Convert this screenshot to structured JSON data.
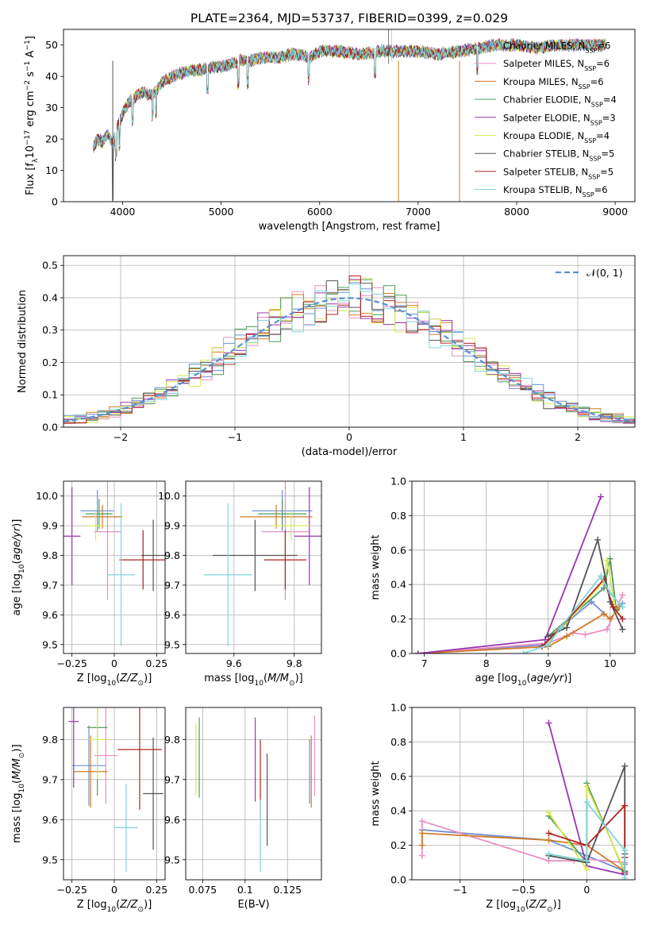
{
  "colors": {
    "Chabrier MILES": "#6e8fd8",
    "Salpeter MILES": "#e98fc3",
    "Kroupa MILES": "#d47a26",
    "Chabrier ELODIE": "#4f9c5a",
    "Salpeter ELODIE": "#9b34b0",
    "Kroupa ELODIE": "#d9ea54",
    "Chabrier STELIB": "#555555",
    "Salpeter STELIB": "#b22222",
    "Kroupa STELIB": "#7fd6d8",
    "normal": "#5b8fd4"
  },
  "chart_data": [
    {
      "type": "line",
      "title": "PLATE=2364, MJD=53737, FIBERID=0399, z=0.029",
      "xlabel": "wavelength [Angstrom, rest frame]",
      "ylabel": "Flux [f_λ10^-17 erg cm^-2 s^-1 A^-1]",
      "xlim": [
        3400,
        9200
      ],
      "ylim": [
        0,
        55
      ],
      "xticks": [
        4000,
        5000,
        6000,
        7000,
        8000,
        9000
      ],
      "yticks": [
        0,
        10,
        20,
        30,
        40,
        50
      ],
      "legend_position": "right",
      "legend": [
        {
          "name": "Chabrier MILES",
          "nssp": "6"
        },
        {
          "name": "Salpeter MILES",
          "nssp": "6"
        },
        {
          "name": "Kroupa MILES",
          "nssp": "6"
        },
        {
          "name": "Chabrier ELODIE",
          "nssp": "4"
        },
        {
          "name": "Salpeter ELODIE",
          "nssp": "3"
        },
        {
          "name": "Kroupa ELODIE",
          "nssp": "4"
        },
        {
          "name": "Chabrier STELIB",
          "nssp": "5"
        },
        {
          "name": "Salpeter STELIB",
          "nssp": "5"
        },
        {
          "name": "Kroupa STELIB",
          "nssp": "6"
        }
      ],
      "spectrum": {
        "x": [
          3700,
          3750,
          3800,
          3850,
          3900,
          3950,
          4000,
          4050,
          4100,
          4150,
          4200,
          4300,
          4400,
          4500,
          4600,
          4700,
          4800,
          4900,
          5000,
          5100,
          5200,
          5300,
          5400,
          5500,
          5600,
          5700,
          5800,
          5900,
          6000,
          6200,
          6400,
          6600,
          6800,
          7000,
          7200,
          7400,
          7600,
          7800,
          8000,
          8200,
          8400,
          8600,
          8800,
          8900
        ],
        "y": [
          17,
          20,
          19,
          22,
          18,
          24,
          28,
          31,
          33,
          34,
          35,
          34,
          38,
          40,
          41,
          42,
          42,
          43,
          43,
          44,
          45,
          45,
          46,
          46,
          46,
          47,
          47,
          46,
          48,
          48,
          47,
          48,
          48,
          48,
          47,
          48,
          49,
          50,
          50,
          49,
          50,
          50,
          50,
          50
        ]
      },
      "dropouts": [
        {
          "x": 3900,
          "y": 0,
          "series": "Chabrier STELIB"
        },
        {
          "x": 6800,
          "y": 0,
          "series": "Kroupa MILES"
        },
        {
          "x": 7420,
          "y": 0,
          "series": "Kroupa MILES"
        }
      ]
    },
    {
      "type": "histogram",
      "xlabel": "(data-model)/error",
      "ylabel": "Normed distribution",
      "xlim": [
        -2.5,
        2.5
      ],
      "ylim": [
        0,
        0.53
      ],
      "xticks": [
        -2,
        -1,
        0,
        1,
        2
      ],
      "yticks": [
        0.0,
        0.1,
        0.2,
        0.3,
        0.4,
        0.5
      ],
      "grid": true,
      "legend_position": "top-right",
      "bin_width": 0.1,
      "normal_curve": {
        "label": "N(0,1)",
        "mu": 0,
        "sigma": 1
      }
    },
    {
      "type": "scatter",
      "xlabel": "Z [log10(Z/Z⊙)]",
      "ylabel": "age [log10(age/yr)]",
      "xlim": [
        -0.3,
        0.3
      ],
      "ylim": [
        9.47,
        10.05
      ],
      "xticks": [
        -0.25,
        0.0,
        0.25
      ],
      "yticks": [
        9.5,
        9.6,
        9.7,
        9.8,
        9.9,
        10.0
      ],
      "grid": true,
      "points": [
        {
          "series": "Chabrier MILES",
          "x": -0.1,
          "y": 9.95,
          "xerr": 0.1,
          "yerr": 0.07
        },
        {
          "series": "Salpeter MILES",
          "x": -0.04,
          "y": 9.88,
          "xerr": 0.08,
          "yerr": 0.23
        },
        {
          "series": "Kroupa MILES",
          "x": -0.07,
          "y": 9.93,
          "xerr": 0.12,
          "yerr": 0.04
        },
        {
          "series": "Chabrier ELODIE",
          "x": -0.09,
          "y": 9.94,
          "xerr": 0.08,
          "yerr": 0.05
        },
        {
          "series": "Salpeter ELODIE",
          "x": -0.25,
          "y": 9.865,
          "xerr": 0.05,
          "yerr": 0.165
        },
        {
          "series": "Kroupa ELODIE",
          "x": -0.11,
          "y": 9.9,
          "xerr": 0.06,
          "yerr": 0.05
        },
        {
          "series": "Chabrier STELIB",
          "x": 0.23,
          "y": 9.8,
          "xerr": 0.07,
          "yerr": 0.12
        },
        {
          "series": "Salpeter STELIB",
          "x": 0.17,
          "y": 9.785,
          "xerr": 0.14,
          "yerr": 0.1
        },
        {
          "series": "Kroupa STELIB",
          "x": 0.04,
          "y": 9.735,
          "xerr": 0.08,
          "yerr": 0.24
        }
      ]
    },
    {
      "type": "scatter",
      "xlabel": "mass [log10(M/M⊙)]",
      "ylabel": "",
      "xlim": [
        9.44,
        9.89
      ],
      "ylim": [
        9.47,
        10.05
      ],
      "xticks": [
        9.6,
        9.8
      ],
      "yticks": [
        9.5,
        9.6,
        9.7,
        9.8,
        9.9,
        10.0
      ],
      "grid": true,
      "points": [
        {
          "series": "Chabrier MILES",
          "x": 9.76,
          "y": 9.95,
          "xerr": 0.1,
          "yerr": 0.07
        },
        {
          "series": "Salpeter MILES",
          "x": 9.77,
          "y": 9.88,
          "xerr": 0.08,
          "yerr": 0.23
        },
        {
          "series": "Kroupa MILES",
          "x": 9.74,
          "y": 9.93,
          "xerr": 0.12,
          "yerr": 0.04
        },
        {
          "series": "Chabrier ELODIE",
          "x": 9.76,
          "y": 9.94,
          "xerr": 0.08,
          "yerr": 0.05
        },
        {
          "series": "Salpeter ELODIE",
          "x": 9.85,
          "y": 9.865,
          "xerr": 0.05,
          "yerr": 0.165
        },
        {
          "series": "Kroupa ELODIE",
          "x": 9.79,
          "y": 9.9,
          "xerr": 0.06,
          "yerr": 0.05
        },
        {
          "series": "Chabrier STELIB",
          "x": 9.67,
          "y": 9.8,
          "xerr": 0.14,
          "yerr": 0.12
        },
        {
          "series": "Salpeter STELIB",
          "x": 9.77,
          "y": 9.785,
          "xerr": 0.07,
          "yerr": 0.1
        },
        {
          "series": "Kroupa STELIB",
          "x": 9.58,
          "y": 9.735,
          "xerr": 0.08,
          "yerr": 0.24
        }
      ]
    },
    {
      "type": "line",
      "xlabel": "age [log10(age/yr)]",
      "ylabel": "mass weight",
      "xlim": [
        6.8,
        10.4
      ],
      "ylim": [
        0,
        1
      ],
      "xticks": [
        7,
        8,
        9,
        10
      ],
      "yticks": [
        0.0,
        0.2,
        0.4,
        0.6,
        0.8,
        1.0
      ],
      "grid": true,
      "series": [
        {
          "name": "Chabrier MILES",
          "x": [
            6.9,
            8.95,
            9.3,
            9.7,
            10.0,
            10.2
          ],
          "y": [
            0.0,
            0.05,
            0.18,
            0.3,
            0.2,
            0.29
          ]
        },
        {
          "name": "Salpeter MILES",
          "x": [
            6.9,
            9.0,
            9.4,
            9.6,
            9.95,
            10.2
          ],
          "y": [
            0.0,
            0.06,
            0.12,
            0.11,
            0.14,
            0.34
          ]
        },
        {
          "name": "Kroupa MILES",
          "x": [
            6.9,
            9.0,
            9.3,
            9.9,
            10.0,
            10.15
          ],
          "y": [
            0.0,
            0.04,
            0.1,
            0.23,
            0.2,
            0.27
          ]
        },
        {
          "name": "Chabrier ELODIE",
          "x": [
            9.0,
            9.9,
            10.0,
            10.1
          ],
          "y": [
            0.1,
            0.38,
            0.55,
            0.25
          ]
        },
        {
          "name": "Salpeter ELODIE",
          "x": [
            6.9,
            8.95,
            9.85
          ],
          "y": [
            0.0,
            0.08,
            0.91
          ]
        },
        {
          "name": "Kroupa ELODIE",
          "x": [
            9.0,
            9.9,
            9.95,
            10.1
          ],
          "y": [
            0.06,
            0.42,
            0.54,
            0.23
          ]
        },
        {
          "name": "Chabrier STELIB",
          "x": [
            9.0,
            9.3,
            9.8,
            10.0,
            10.2
          ],
          "y": [
            0.1,
            0.15,
            0.66,
            0.3,
            0.14
          ]
        },
        {
          "name": "Salpeter STELIB",
          "x": [
            8.9,
            9.2,
            9.9,
            10.05,
            10.2
          ],
          "y": [
            0.04,
            0.15,
            0.43,
            0.27,
            0.2
          ]
        },
        {
          "name": "Kroupa STELIB",
          "x": [
            8.6,
            9.0,
            9.2,
            9.85,
            10.0,
            10.2
          ],
          "y": [
            0.0,
            0.05,
            0.15,
            0.45,
            0.35,
            0.27
          ]
        }
      ]
    },
    {
      "type": "scatter",
      "xlabel": "Z [log10(Z/Z⊙)]",
      "ylabel": "mass [log10(M/M⊙)]",
      "xlim": [
        -0.3,
        0.3
      ],
      "ylim": [
        9.45,
        9.88
      ],
      "xticks": [
        -0.25,
        0.0,
        0.25
      ],
      "yticks": [
        9.5,
        9.6,
        9.7,
        9.8
      ],
      "grid": true,
      "points": [
        {
          "series": "Chabrier MILES",
          "x": -0.15,
          "y": 9.735,
          "xerr": 0.1,
          "yerr": 0.1
        },
        {
          "series": "Salpeter MILES",
          "x": -0.05,
          "y": 9.76,
          "xerr": 0.07,
          "yerr": 0.12
        },
        {
          "series": "Kroupa MILES",
          "x": -0.14,
          "y": 9.72,
          "xerr": 0.1,
          "yerr": 0.09
        },
        {
          "series": "Chabrier ELODIE",
          "x": -0.1,
          "y": 9.83,
          "xerr": 0.06,
          "yerr": 0.17
        },
        {
          "series": "Salpeter ELODIE",
          "x": -0.24,
          "y": 9.845,
          "xerr": 0.03,
          "yerr": 0.165
        },
        {
          "series": "Kroupa ELODIE",
          "x": -0.1,
          "y": 9.8,
          "xerr": 0.05,
          "yerr": 0.1
        },
        {
          "series": "Chabrier STELIB",
          "x": 0.23,
          "y": 9.665,
          "xerr": 0.06,
          "yerr": 0.14
        },
        {
          "series": "Salpeter STELIB",
          "x": 0.15,
          "y": 9.775,
          "xerr": 0.13,
          "yerr": 0.15
        },
        {
          "series": "Kroupa STELIB",
          "x": 0.07,
          "y": 9.58,
          "xerr": 0.07,
          "yerr": 0.11
        }
      ]
    },
    {
      "type": "scatter",
      "xlabel": "E(B-V)",
      "ylabel": "",
      "xlim": [
        0.065,
        0.145
      ],
      "ylim": [
        9.45,
        9.88
      ],
      "xticks": [
        0.075,
        0.1,
        0.125
      ],
      "yticks": [
        9.5,
        9.6,
        9.7,
        9.8
      ],
      "grid": true,
      "points": [
        {
          "series": "Chabrier MILES",
          "x": 0.138,
          "y": 9.72,
          "yerr": 0.08
        },
        {
          "series": "Salpeter MILES",
          "x": 0.141,
          "y": 9.76,
          "yerr": 0.1
        },
        {
          "series": "Kroupa MILES",
          "x": 0.139,
          "y": 9.72,
          "yerr": 0.09
        },
        {
          "series": "Chabrier ELODIE",
          "x": 0.073,
          "y": 9.755,
          "yerr": 0.1
        },
        {
          "series": "Salpeter ELODIE",
          "x": 0.106,
          "y": 9.75,
          "yerr": 0.105
        },
        {
          "series": "Kroupa ELODIE",
          "x": 0.071,
          "y": 9.75,
          "yerr": 0.09
        },
        {
          "series": "Chabrier STELIB",
          "x": 0.113,
          "y": 9.65,
          "yerr": 0.115
        },
        {
          "series": "Salpeter STELIB",
          "x": 0.109,
          "y": 9.7,
          "yerr": 0.1
        },
        {
          "series": "Kroupa STELIB",
          "x": 0.109,
          "y": 9.56,
          "yerr": 0.09
        }
      ]
    },
    {
      "type": "line",
      "xlabel": "Z [log10(Z/Z⊙)]",
      "ylabel": "mass weight",
      "xlim": [
        -1.38,
        0.38
      ],
      "ylim": [
        0,
        1
      ],
      "xticks": [
        -1.0,
        -0.5,
        0.0
      ],
      "yticks": [
        0.0,
        0.2,
        0.4,
        0.6,
        0.8,
        1.0
      ],
      "grid": true,
      "series": [
        {
          "name": "Chabrier MILES",
          "x": [
            -1.3,
            -0.3,
            0.0,
            0.3,
            0.3
          ],
          "y": [
            0.29,
            0.23,
            0.14,
            0.05,
            0.09
          ]
        },
        {
          "name": "Salpeter MILES",
          "x": [
            -1.3,
            -1.3,
            -0.3,
            -0.1,
            0.0,
            0.3
          ],
          "y": [
            0.14,
            0.34,
            0.11,
            0.11,
            0.12,
            0.1
          ]
        },
        {
          "name": "Kroupa MILES",
          "x": [
            -1.3,
            -1.3,
            -0.3,
            0.0,
            0.3
          ],
          "y": [
            0.2,
            0.27,
            0.23,
            0.2,
            0.05
          ]
        },
        {
          "name": "Chabrier ELODIE",
          "x": [
            -0.3,
            0.0,
            0.0,
            0.3
          ],
          "y": [
            0.37,
            0.1,
            0.56,
            0.04
          ]
        },
        {
          "name": "Salpeter ELODIE",
          "x": [
            -0.3,
            0.0,
            0.3
          ],
          "y": [
            0.91,
            0.08,
            0.03
          ]
        },
        {
          "name": "Kroupa ELODIE",
          "x": [
            -0.3,
            0.0,
            0.0,
            0.3
          ],
          "y": [
            0.39,
            0.06,
            0.54,
            0.05
          ]
        },
        {
          "name": "Chabrier STELIB",
          "x": [
            -0.3,
            0.0,
            0.3,
            0.3,
            0.3
          ],
          "y": [
            0.14,
            0.1,
            0.66,
            0.15,
            0.05
          ]
        },
        {
          "name": "Salpeter STELIB",
          "x": [
            -0.3,
            0.0,
            0.3,
            0.3,
            0.3
          ],
          "y": [
            0.27,
            0.2,
            0.43,
            0.13,
            0.04
          ]
        },
        {
          "name": "Kroupa STELIB",
          "x": [
            -0.3,
            0.0,
            0.0,
            0.3,
            0.3
          ],
          "y": [
            0.15,
            0.11,
            0.45,
            0.17,
            0.01
          ]
        }
      ]
    }
  ]
}
